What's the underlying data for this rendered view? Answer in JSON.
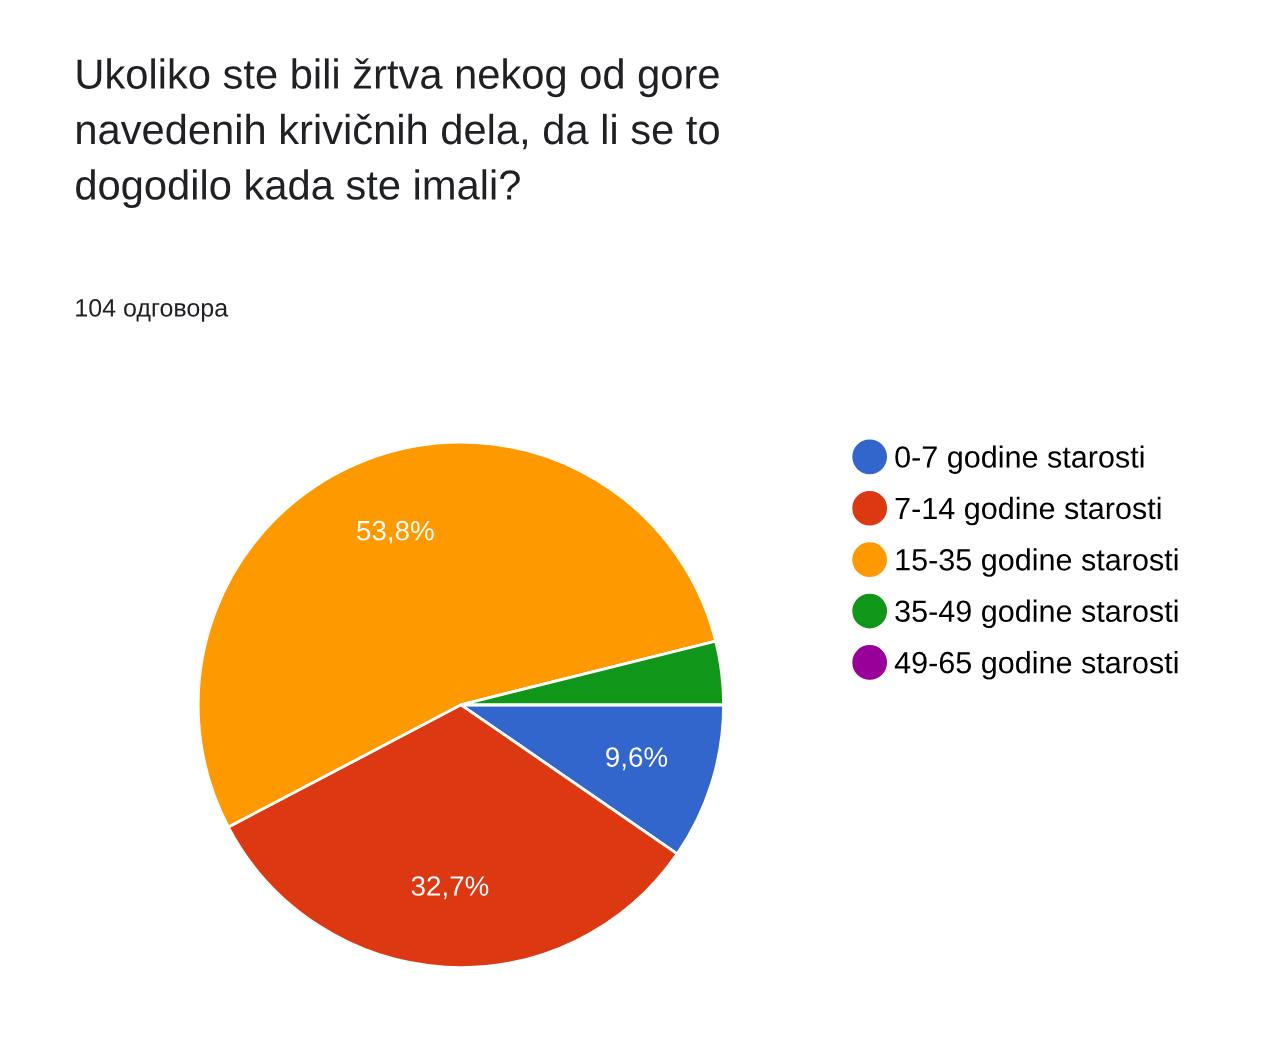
{
  "chart_data": {
    "type": "pie",
    "title": "Ukoliko ste bili žrtva nekog od gore\nnavedenih krivičnih dela, da li se to\ndogodilo kada ste imali?",
    "subtitle": "104 одговора",
    "categories": [
      "0-7 godine starosti",
      "7-14 godine starosti",
      "15-35 godine starosti",
      "35-49 godine starosti",
      "49-65 godine starosti"
    ],
    "values": [
      9.6,
      32.7,
      53.8,
      3.9,
      0
    ],
    "colors": [
      "#3366cc",
      "#dc3912",
      "#ff9900",
      "#109618",
      "#990099"
    ],
    "value_labels": [
      "9,6%",
      "32,7%",
      "53,8%",
      null,
      null
    ],
    "legend": "right"
  }
}
